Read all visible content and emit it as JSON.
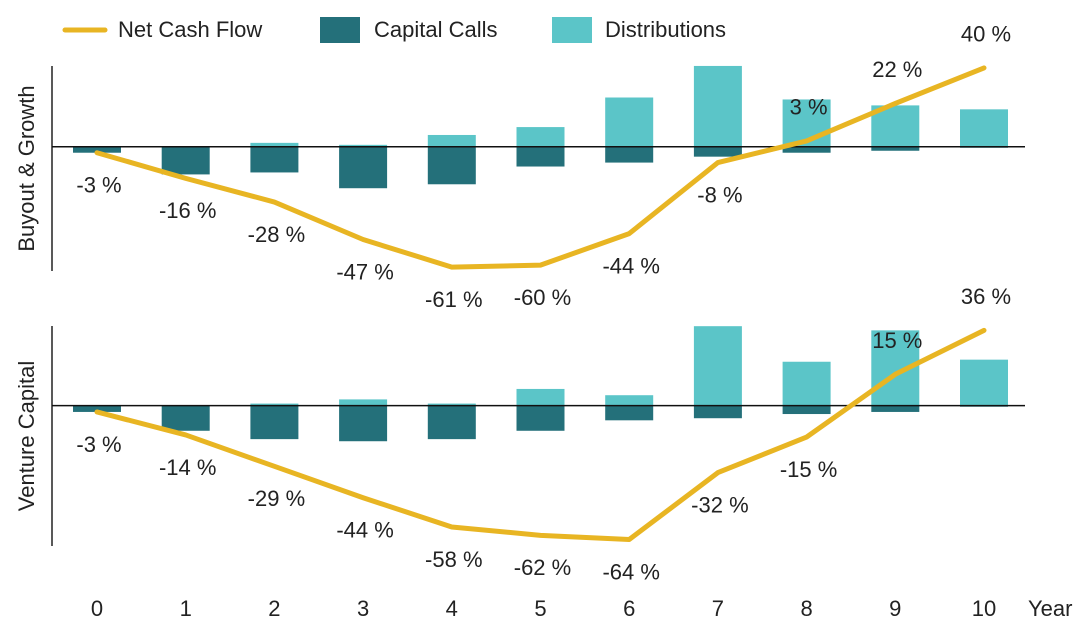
{
  "chart_data": {
    "type": "combo",
    "categories": [
      "0",
      "1",
      "2",
      "3",
      "4",
      "5",
      "6",
      "7",
      "8",
      "9",
      "10"
    ],
    "xlabel": "Year",
    "panels": [
      {
        "ylabel": "Buyout & Growth",
        "ylim": [
          -65,
          43
        ]
      },
      {
        "ylabel": "Venture Capital",
        "ylim": [
          -69,
          40
        ]
      }
    ],
    "series": [
      {
        "name": "Net Cash Flow",
        "type": "line",
        "color": "#e8b523",
        "values": [
          [
            -3,
            -16,
            -28,
            -47,
            -61,
            -60,
            -44,
            -8,
            3,
            22,
            40
          ],
          [
            -3,
            -14,
            -29,
            -44,
            -58,
            -62,
            -64,
            -32,
            -15,
            15,
            36
          ]
        ],
        "value_labels": [
          [
            "-3 %",
            "-16 %",
            "-28 %",
            "-47 %",
            "-61 %",
            "-60 %",
            "-44 %",
            "-8 %",
            "3 %",
            "22 %",
            "40 %"
          ],
          [
            "-3 %",
            "-14 %",
            "-29 %",
            "-44 %",
            "-58 %",
            "-62 %",
            "-64 %",
            "-32 %",
            "-15 %",
            "15 %",
            "36 %"
          ]
        ]
      },
      {
        "name": "Capital Calls",
        "type": "bar",
        "color": "#24707a",
        "values": [
          [
            -3,
            -14,
            -13,
            -21,
            -19,
            -10,
            -8,
            -5,
            -3,
            -2,
            -0.5
          ],
          [
            -3,
            -12,
            -16,
            -17,
            -16,
            -12,
            -7,
            -6,
            -4,
            -3,
            -0.5
          ]
        ]
      },
      {
        "name": "Distributions",
        "type": "bar",
        "color": "#5bc5c8",
        "values": [
          [
            0,
            0,
            2,
            1,
            6,
            10,
            25,
            41,
            24,
            21,
            19
          ],
          [
            0,
            0,
            1,
            3,
            1,
            8,
            5,
            38,
            21,
            36,
            22
          ]
        ]
      }
    ]
  }
}
